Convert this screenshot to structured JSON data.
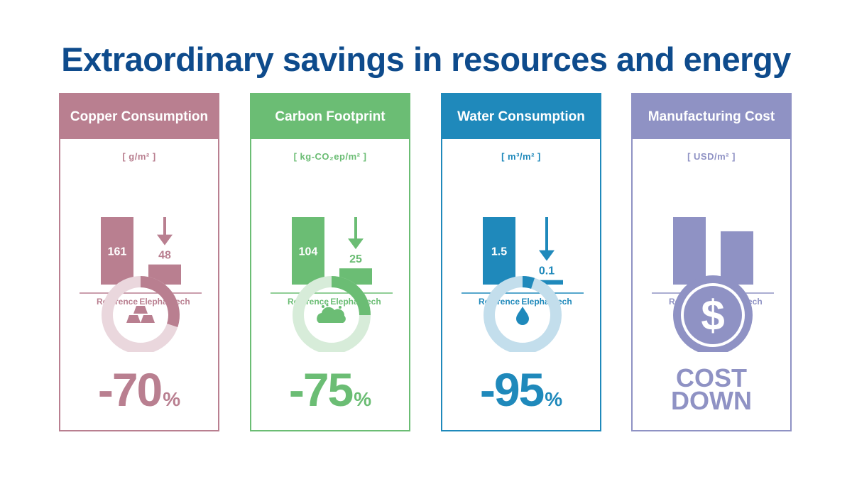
{
  "title": "Extraordinary savings in resources and energy",
  "chart_data": [
    {
      "type": "bar",
      "title": "Copper Consumption",
      "unit": "[ g/m² ]",
      "categories": [
        "Reference",
        "Elephantech"
      ],
      "values": [
        161,
        48
      ],
      "ylim": [
        0,
        161
      ],
      "reduction_percent": 70,
      "reduction_label": "-70",
      "percent_sign": "%",
      "icon": "gold-bars-icon",
      "color": "#b97f90",
      "light_color": "#ead7dd"
    },
    {
      "type": "bar",
      "title": "Carbon Footprint",
      "unit": "[ kg-CO₂ep/m² ]",
      "categories": [
        "Reference",
        "Elephantech"
      ],
      "values": [
        104,
        25
      ],
      "ylim": [
        0,
        104
      ],
      "reduction_percent": 75,
      "reduction_label": "-75",
      "percent_sign": "%",
      "icon": "cloud-icon",
      "color": "#6bbd74",
      "light_color": "#d7ecd9"
    },
    {
      "type": "bar",
      "title": "Water Consumption",
      "unit": "[ m³/m² ]",
      "categories": [
        "Reference",
        "Elephantech"
      ],
      "values": [
        1.5,
        0.1
      ],
      "ylim": [
        0,
        1.5
      ],
      "reduction_percent": 95,
      "reduction_label": "-95",
      "percent_sign": "%",
      "icon": "water-drop-icon",
      "color": "#1f89bb",
      "light_color": "#c3deec"
    },
    {
      "type": "bar",
      "title": "Manufacturing Cost",
      "unit": "[ USD/m² ]",
      "categories": [
        "Reference",
        "Elephantech"
      ],
      "values": [
        1,
        0.79
      ],
      "ylim": [
        0,
        1
      ],
      "icon": "dollar-coin-icon",
      "result_lines": [
        "COST",
        "DOWN"
      ],
      "color": "#8f92c4",
      "light_color": "#dcddef"
    }
  ]
}
